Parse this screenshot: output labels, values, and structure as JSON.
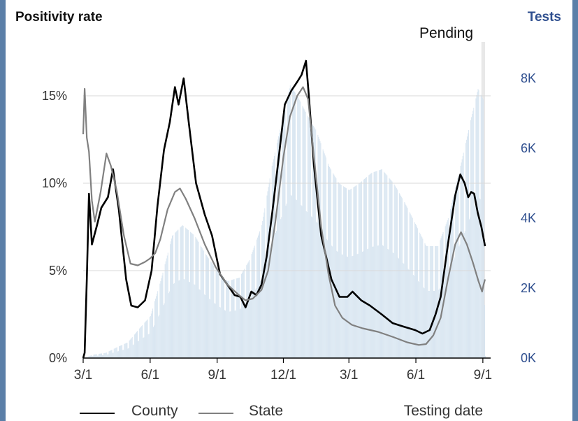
{
  "header": {
    "title": "Positivity rate",
    "right_title": "Tests",
    "pending_label": "Pending"
  },
  "legend": {
    "county": "County",
    "state": "State",
    "testing_date": "Testing date"
  },
  "colors": {
    "county": "#000000",
    "state": "#808080",
    "tests": "#d6e4f0",
    "tests_axis": "#2f4f8f",
    "grid": "#d9d9d9",
    "pending_band": "#e8e8e8"
  },
  "chart_data": {
    "type": "line",
    "title": "Positivity rate",
    "x_tick_labels": [
      "3/1",
      "6/1",
      "9/1",
      "12/1",
      "3/1",
      "6/1",
      "9/1"
    ],
    "x_tick_dates": [
      "2020-03-01",
      "2020-06-01",
      "2020-09-01",
      "2020-12-01",
      "2021-03-01",
      "2021-06-01",
      "2021-09-01"
    ],
    "x_range": [
      "2020-03-01",
      "2021-09-04"
    ],
    "pending_range": [
      "2021-08-30",
      "2021-09-04"
    ],
    "y_left": {
      "ticks": [
        "0%",
        "5%",
        "10%",
        "15%"
      ],
      "range": [
        0,
        16
      ],
      "unit": "%"
    },
    "y_right": {
      "label": "Tests",
      "ticks": [
        "0K",
        "2K",
        "4K",
        "6K",
        "8K"
      ],
      "range": [
        0,
        8000
      ]
    },
    "grid": true,
    "legend_position": "bottom",
    "series": [
      {
        "name": "County",
        "axis": "left",
        "points": [
          [
            "2020-03-01",
            0
          ],
          [
            "2020-03-03",
            0.3
          ],
          [
            "2020-03-06",
            4.5
          ],
          [
            "2020-03-09",
            9.4
          ],
          [
            "2020-03-13",
            6.5
          ],
          [
            "2020-03-20",
            7.6
          ],
          [
            "2020-03-26",
            8.6
          ],
          [
            "2020-04-04",
            9.2
          ],
          [
            "2020-04-11",
            10.8
          ],
          [
            "2020-04-19",
            8.5
          ],
          [
            "2020-04-29",
            4.5
          ],
          [
            "2020-05-06",
            3.0
          ],
          [
            "2020-05-15",
            2.9
          ],
          [
            "2020-05-25",
            3.3
          ],
          [
            "2020-06-03",
            5.0
          ],
          [
            "2020-06-11",
            8.7
          ],
          [
            "2020-06-20",
            11.9
          ],
          [
            "2020-06-28",
            13.5
          ],
          [
            "2020-07-05",
            15.5
          ],
          [
            "2020-07-10",
            14.5
          ],
          [
            "2020-07-17",
            16.0
          ],
          [
            "2020-07-24",
            13.5
          ],
          [
            "2020-08-03",
            10.0
          ],
          [
            "2020-08-15",
            8.2
          ],
          [
            "2020-08-25",
            7.0
          ],
          [
            "2020-09-05",
            4.8
          ],
          [
            "2020-09-15",
            4.2
          ],
          [
            "2020-09-25",
            3.6
          ],
          [
            "2020-10-03",
            3.5
          ],
          [
            "2020-10-10",
            2.9
          ],
          [
            "2020-10-18",
            3.8
          ],
          [
            "2020-10-25",
            3.6
          ],
          [
            "2020-11-01",
            4.2
          ],
          [
            "2020-11-08",
            5.8
          ],
          [
            "2020-11-16",
            8.4
          ],
          [
            "2020-11-25",
            11.6
          ],
          [
            "2020-12-03",
            14.5
          ],
          [
            "2020-12-12",
            15.3
          ],
          [
            "2020-12-20",
            15.8
          ],
          [
            "2020-12-26",
            16.2
          ],
          [
            "2021-01-01",
            17.0
          ],
          [
            "2021-01-05",
            15.0
          ],
          [
            "2021-01-12",
            11.0
          ],
          [
            "2021-01-22",
            7.0
          ],
          [
            "2021-02-05",
            4.5
          ],
          [
            "2021-02-16",
            3.5
          ],
          [
            "2021-02-27",
            3.5
          ],
          [
            "2021-03-06",
            3.8
          ],
          [
            "2021-03-18",
            3.3
          ],
          [
            "2021-03-30",
            3.0
          ],
          [
            "2021-04-15",
            2.5
          ],
          [
            "2021-04-30",
            2.0
          ],
          [
            "2021-05-15",
            1.8
          ],
          [
            "2021-05-31",
            1.6
          ],
          [
            "2021-06-10",
            1.4
          ],
          [
            "2021-06-20",
            1.6
          ],
          [
            "2021-06-28",
            2.5
          ],
          [
            "2021-07-05",
            3.5
          ],
          [
            "2021-07-15",
            6.5
          ],
          [
            "2021-07-25",
            9.3
          ],
          [
            "2021-08-01",
            10.5
          ],
          [
            "2021-08-07",
            10.0
          ],
          [
            "2021-08-12",
            9.2
          ],
          [
            "2021-08-16",
            9.5
          ],
          [
            "2021-08-20",
            9.4
          ],
          [
            "2021-08-25",
            8.3
          ],
          [
            "2021-08-30",
            7.5
          ],
          [
            "2021-09-04",
            6.4
          ]
        ]
      },
      {
        "name": "State",
        "axis": "left",
        "points": [
          [
            "2020-03-01",
            12.8
          ],
          [
            "2020-03-03",
            15.4
          ],
          [
            "2020-03-06",
            12.6
          ],
          [
            "2020-03-09",
            11.8
          ],
          [
            "2020-03-13",
            9.0
          ],
          [
            "2020-03-17",
            7.8
          ],
          [
            "2020-03-25",
            9.5
          ],
          [
            "2020-04-02",
            11.7
          ],
          [
            "2020-04-08",
            11.0
          ],
          [
            "2020-04-16",
            9.6
          ],
          [
            "2020-04-26",
            7.0
          ],
          [
            "2020-05-05",
            5.4
          ],
          [
            "2020-05-15",
            5.3
          ],
          [
            "2020-05-25",
            5.5
          ],
          [
            "2020-06-01",
            5.7
          ],
          [
            "2020-06-08",
            6.0
          ],
          [
            "2020-06-15",
            6.8
          ],
          [
            "2020-06-25",
            8.5
          ],
          [
            "2020-07-05",
            9.5
          ],
          [
            "2020-07-12",
            9.7
          ],
          [
            "2020-07-20",
            9.1
          ],
          [
            "2020-08-01",
            8.0
          ],
          [
            "2020-08-15",
            6.5
          ],
          [
            "2020-08-30",
            5.2
          ],
          [
            "2020-09-15",
            4.2
          ],
          [
            "2020-10-01",
            3.6
          ],
          [
            "2020-10-10",
            3.3
          ],
          [
            "2020-10-20",
            3.4
          ],
          [
            "2020-11-01",
            3.9
          ],
          [
            "2020-11-10",
            5.0
          ],
          [
            "2020-11-20",
            7.8
          ],
          [
            "2020-12-01",
            11.5
          ],
          [
            "2020-12-10",
            13.8
          ],
          [
            "2020-12-20",
            15.0
          ],
          [
            "2020-12-28",
            15.5
          ],
          [
            "2021-01-04",
            14.8
          ],
          [
            "2021-01-12",
            11.5
          ],
          [
            "2021-01-22",
            7.5
          ],
          [
            "2021-02-01",
            4.8
          ],
          [
            "2021-02-10",
            3.0
          ],
          [
            "2021-02-20",
            2.3
          ],
          [
            "2021-03-05",
            1.9
          ],
          [
            "2021-03-20",
            1.7
          ],
          [
            "2021-04-10",
            1.5
          ],
          [
            "2021-05-01",
            1.2
          ],
          [
            "2021-05-20",
            0.9
          ],
          [
            "2021-06-05",
            0.75
          ],
          [
            "2021-06-15",
            0.8
          ],
          [
            "2021-06-25",
            1.3
          ],
          [
            "2021-07-05",
            2.3
          ],
          [
            "2021-07-15",
            4.5
          ],
          [
            "2021-07-25",
            6.5
          ],
          [
            "2021-08-02",
            7.2
          ],
          [
            "2021-08-10",
            6.5
          ],
          [
            "2021-08-18",
            5.5
          ],
          [
            "2021-08-26",
            4.4
          ],
          [
            "2021-08-31",
            3.8
          ],
          [
            "2021-09-02",
            4.2
          ],
          [
            "2021-09-04",
            4.5
          ]
        ]
      },
      {
        "name": "Tests",
        "axis": "right",
        "type": "bar",
        "points": [
          [
            "2020-03-01",
            0
          ],
          [
            "2020-03-15",
            100
          ],
          [
            "2020-04-01",
            150
          ],
          [
            "2020-04-15",
            300
          ],
          [
            "2020-05-01",
            450
          ],
          [
            "2020-05-15",
            800
          ],
          [
            "2020-06-01",
            1200
          ],
          [
            "2020-06-15",
            2200
          ],
          [
            "2020-07-01",
            3500
          ],
          [
            "2020-07-15",
            3800
          ],
          [
            "2020-08-01",
            3500
          ],
          [
            "2020-08-15",
            3000
          ],
          [
            "2020-09-01",
            2500
          ],
          [
            "2020-09-15",
            2200
          ],
          [
            "2020-10-01",
            2300
          ],
          [
            "2020-10-15",
            2800
          ],
          [
            "2020-11-01",
            3800
          ],
          [
            "2020-11-15",
            5500
          ],
          [
            "2020-12-01",
            7000
          ],
          [
            "2020-12-10",
            7800
          ],
          [
            "2020-12-20",
            7500
          ],
          [
            "2021-01-01",
            7000
          ],
          [
            "2021-01-15",
            6500
          ],
          [
            "2021-02-01",
            5500
          ],
          [
            "2021-02-15",
            5000
          ],
          [
            "2021-03-01",
            4800
          ],
          [
            "2021-03-15",
            5000
          ],
          [
            "2021-04-01",
            5300
          ],
          [
            "2021-04-15",
            5400
          ],
          [
            "2021-05-01",
            5000
          ],
          [
            "2021-05-15",
            4500
          ],
          [
            "2021-06-01",
            3800
          ],
          [
            "2021-06-15",
            3200
          ],
          [
            "2021-07-01",
            3200
          ],
          [
            "2021-07-15",
            4000
          ],
          [
            "2021-08-01",
            5500
          ],
          [
            "2021-08-15",
            6800
          ],
          [
            "2021-08-25",
            7700
          ],
          [
            "2021-09-01",
            7400
          ],
          [
            "2021-09-04",
            100
          ]
        ]
      }
    ]
  }
}
